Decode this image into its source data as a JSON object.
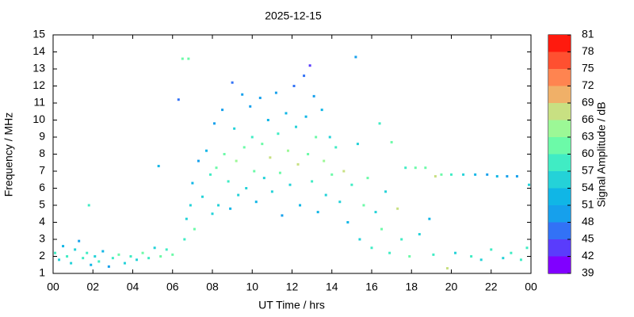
{
  "chart_data": {
    "type": "scatter",
    "title": "2025-12-15",
    "xlabel": "UT Time / hrs",
    "ylabel": "Frequency / MHz",
    "xlim": [
      0,
      24
    ],
    "xticks": [
      {
        "value": 0,
        "label": "00"
      },
      {
        "value": 2,
        "label": "02"
      },
      {
        "value": 4,
        "label": "04"
      },
      {
        "value": 6,
        "label": "06"
      },
      {
        "value": 8,
        "label": "08"
      },
      10,
      12,
      14,
      16,
      18,
      20,
      22,
      {
        "value": 24,
        "label": "00"
      }
    ],
    "ylim": [
      1,
      15
    ],
    "yticks": [
      1,
      2,
      3,
      4,
      5,
      6,
      7,
      8,
      9,
      10,
      11,
      12,
      13,
      14,
      15
    ],
    "colorbar": {
      "label": "Signal Amplitude / dB",
      "lim": [
        39,
        81
      ],
      "ticks": [
        39,
        42,
        45,
        48,
        51,
        54,
        57,
        60,
        63,
        66,
        69,
        72,
        75,
        78,
        81
      ],
      "colors": [
        "#8000ff",
        "#5a3cfc",
        "#3272f6",
        "#16a0ec",
        "#10b6e6",
        "#24d2d8",
        "#40ecc4",
        "#6cfaa8",
        "#9cf896",
        "#c8e082",
        "#f0b068",
        "#ff8450",
        "#ff5030",
        "#ff1a0e"
      ]
    },
    "x": [
      0.1,
      0.3,
      0.5,
      0.7,
      0.9,
      1.1,
      1.3,
      1.5,
      1.7,
      1.9,
      2.1,
      2.3,
      2.5,
      2.8,
      3.0,
      3.3,
      3.6,
      3.9,
      4.2,
      4.5,
      4.8,
      5.1,
      5.4,
      5.7,
      6.0,
      1.8,
      5.3,
      6.3,
      6.5,
      6.8,
      6.6,
      6.7,
      6.9,
      7.0,
      7.1,
      7.3,
      7.5,
      7.7,
      7.9,
      8.0,
      8.1,
      8.2,
      8.3,
      8.5,
      8.6,
      8.8,
      8.9,
      9.0,
      9.1,
      9.2,
      9.3,
      9.5,
      9.6,
      9.7,
      9.9,
      10.0,
      10.1,
      10.2,
      10.4,
      10.5,
      10.6,
      10.8,
      10.9,
      11.0,
      11.2,
      11.3,
      11.4,
      11.5,
      11.7,
      11.8,
      11.9,
      12.1,
      12.2,
      12.3,
      12.4,
      12.6,
      12.7,
      12.8,
      12.9,
      13.0,
      13.1,
      13.2,
      13.3,
      13.5,
      13.6,
      13.7,
      13.9,
      14.0,
      14.2,
      14.4,
      14.6,
      14.8,
      15.0,
      15.2,
      15.3,
      15.4,
      15.6,
      15.8,
      16.0,
      16.2,
      16.4,
      16.5,
      16.7,
      16.9,
      17.0,
      17.3,
      17.5,
      17.7,
      17.9,
      18.2,
      18.4,
      18.7,
      18.9,
      19.1,
      19.2,
      19.5,
      19.8,
      20.0,
      20.2,
      20.6,
      21.0,
      21.2,
      21.5,
      21.8,
      22.0,
      22.3,
      22.6,
      22.8,
      23.0,
      23.3,
      23.5,
      23.8,
      23.9
    ],
    "y": [
      2.2,
      1.8,
      2.6,
      2.0,
      1.6,
      2.4,
      2.9,
      1.9,
      2.2,
      1.5,
      2.0,
      1.7,
      2.3,
      1.4,
      1.9,
      2.1,
      1.6,
      2.0,
      1.8,
      2.2,
      1.9,
      2.5,
      2.0,
      2.4,
      2.1,
      5.0,
      7.3,
      11.2,
      13.6,
      13.6,
      3.0,
      4.2,
      5.0,
      6.3,
      3.6,
      7.6,
      5.5,
      8.2,
      6.8,
      4.5,
      9.8,
      7.2,
      5.0,
      10.6,
      8.0,
      6.4,
      4.8,
      12.2,
      9.5,
      7.6,
      5.6,
      11.5,
      8.4,
      6.0,
      10.8,
      9.0,
      7.0,
      5.2,
      11.3,
      8.6,
      6.6,
      10.0,
      7.8,
      5.8,
      11.6,
      9.2,
      6.9,
      4.4,
      10.4,
      8.2,
      6.2,
      12.0,
      9.6,
      7.4,
      5.0,
      12.6,
      10.2,
      8.0,
      13.2,
      6.4,
      11.4,
      9.0,
      4.6,
      10.6,
      7.6,
      5.6,
      9.0,
      6.8,
      8.4,
      5.2,
      7.0,
      4.0,
      6.2,
      13.7,
      8.6,
      3.0,
      5.0,
      6.6,
      2.5,
      4.6,
      9.8,
      3.6,
      5.8,
      2.2,
      8.7,
      4.8,
      3.0,
      7.2,
      2.0,
      7.2,
      3.3,
      7.2,
      4.2,
      2.1,
      6.7,
      6.8,
      1.3,
      6.8,
      2.2,
      6.8,
      2.0,
      6.8,
      1.8,
      6.8,
      2.4,
      6.7,
      1.9,
      6.7,
      2.2,
      6.7,
      1.8,
      2.5,
      6.2
    ],
    "values": [
      57,
      55,
      52,
      58,
      54,
      56,
      50,
      57,
      59,
      53,
      56,
      58,
      52,
      49,
      57,
      60,
      54,
      58,
      56,
      60,
      57,
      55,
      62,
      58,
      60,
      58,
      52,
      47,
      60,
      60,
      58,
      56,
      54,
      52,
      60,
      50,
      56,
      52,
      58,
      55,
      50,
      60,
      54,
      48,
      62,
      57,
      52,
      47,
      56,
      63,
      54,
      48,
      60,
      55,
      50,
      58,
      62,
      53,
      49,
      60,
      56,
      52,
      66,
      54,
      48,
      57,
      61,
      50,
      51,
      64,
      56,
      47,
      55,
      67,
      52,
      46,
      53,
      62,
      42,
      57,
      49,
      60,
      52,
      51,
      63,
      55,
      56,
      60,
      57,
      54,
      66,
      52,
      58,
      48,
      55,
      56,
      60,
      62,
      58,
      56,
      57,
      60,
      54,
      58,
      60,
      66,
      58,
      57,
      60,
      60,
      56,
      62,
      52,
      58,
      68,
      60,
      66,
      57,
      56,
      54,
      58,
      52,
      56,
      50,
      58,
      51,
      56,
      50,
      59,
      50,
      57,
      58,
      55
    ]
  }
}
